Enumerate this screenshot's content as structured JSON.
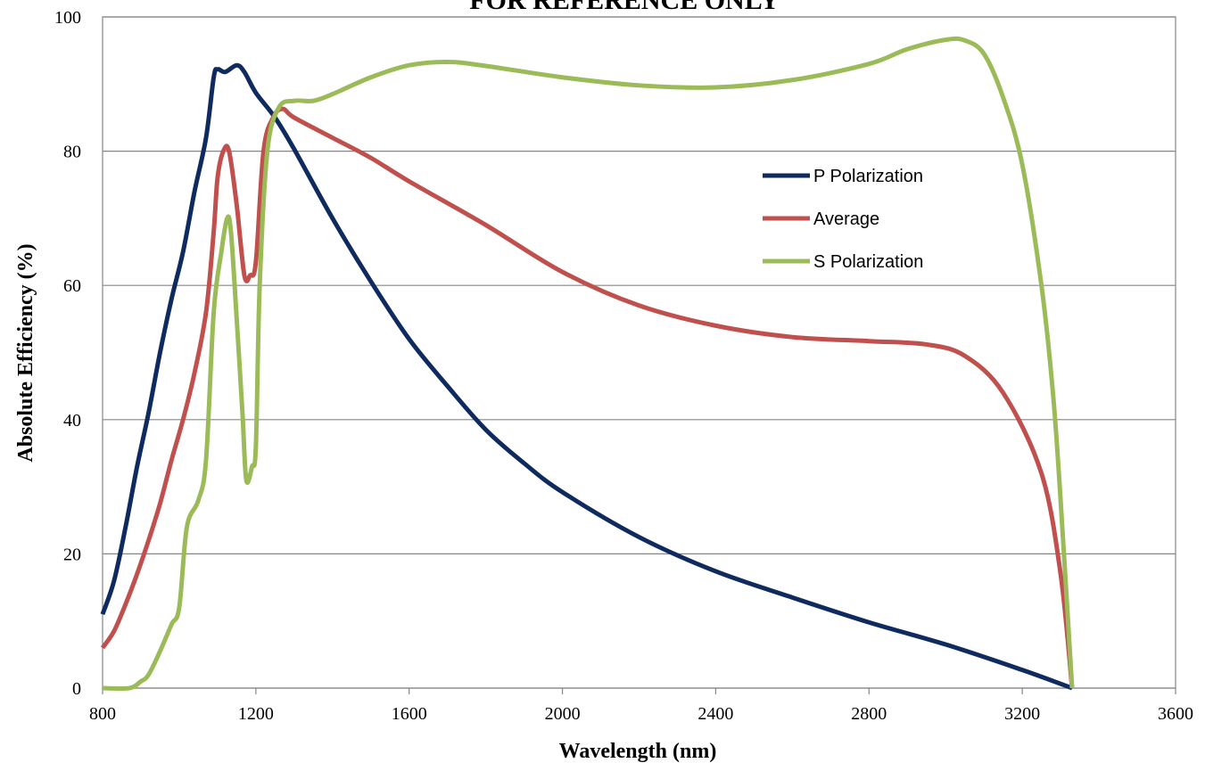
{
  "chart_data": {
    "type": "line",
    "title": "FOR REFERENCE ONLY",
    "xlabel": "Wavelength (nm)",
    "ylabel": "Absolute Efficiency (%)",
    "xlim": [
      800,
      3600
    ],
    "ylim": [
      0,
      100
    ],
    "x_ticks": [
      800,
      1200,
      1600,
      2000,
      2400,
      2800,
      3200,
      3600
    ],
    "y_ticks": [
      0,
      20,
      40,
      60,
      80,
      100
    ],
    "grid": "horizontal",
    "legend_position": "upper-right-inside",
    "series": [
      {
        "name": "P Polarization",
        "color": "#0f2a5f",
        "points": [
          [
            800,
            11
          ],
          [
            830,
            16
          ],
          [
            860,
            24
          ],
          [
            890,
            33
          ],
          [
            920,
            41
          ],
          [
            950,
            50
          ],
          [
            980,
            58
          ],
          [
            1010,
            65
          ],
          [
            1040,
            74
          ],
          [
            1070,
            82
          ],
          [
            1090,
            91
          ],
          [
            1100,
            92.2
          ],
          [
            1120,
            91.8
          ],
          [
            1150,
            92.8
          ],
          [
            1170,
            91.8
          ],
          [
            1200,
            88.7
          ],
          [
            1250,
            85
          ],
          [
            1300,
            80.3
          ],
          [
            1400,
            70
          ],
          [
            1500,
            60.6
          ],
          [
            1600,
            52
          ],
          [
            1700,
            45
          ],
          [
            1800,
            38.5
          ],
          [
            1900,
            33.5
          ],
          [
            2000,
            29.2
          ],
          [
            2200,
            22.5
          ],
          [
            2400,
            17.4
          ],
          [
            2600,
            13.5
          ],
          [
            2800,
            9.8
          ],
          [
            3000,
            6.5
          ],
          [
            3200,
            2.7
          ],
          [
            3330,
            0
          ]
        ]
      },
      {
        "name": "Average",
        "color": "#c0504d",
        "points": [
          [
            800,
            6
          ],
          [
            830,
            8.5
          ],
          [
            860,
            12.5
          ],
          [
            890,
            17
          ],
          [
            920,
            22
          ],
          [
            950,
            27.5
          ],
          [
            980,
            34
          ],
          [
            1010,
            40
          ],
          [
            1040,
            47
          ],
          [
            1070,
            56
          ],
          [
            1090,
            68
          ],
          [
            1100,
            76
          ],
          [
            1115,
            80
          ],
          [
            1130,
            80
          ],
          [
            1150,
            72
          ],
          [
            1170,
            61.5
          ],
          [
            1185,
            61.5
          ],
          [
            1200,
            63.5
          ],
          [
            1220,
            80
          ],
          [
            1245,
            85
          ],
          [
            1270,
            86.3
          ],
          [
            1300,
            85
          ],
          [
            1400,
            82
          ],
          [
            1500,
            79
          ],
          [
            1600,
            75.5
          ],
          [
            1800,
            69
          ],
          [
            2000,
            62
          ],
          [
            2200,
            57
          ],
          [
            2400,
            54
          ],
          [
            2600,
            52.3
          ],
          [
            2800,
            51.7
          ],
          [
            2950,
            51.2
          ],
          [
            3050,
            49.5
          ],
          [
            3150,
            44
          ],
          [
            3250,
            32
          ],
          [
            3300,
            17
          ],
          [
            3330,
            0
          ]
        ]
      },
      {
        "name": "S Polarization",
        "color": "#9bbb59",
        "points": [
          [
            800,
            0
          ],
          [
            870,
            0
          ],
          [
            900,
            1
          ],
          [
            920,
            2
          ],
          [
            950,
            5.5
          ],
          [
            980,
            9.5
          ],
          [
            1000,
            12
          ],
          [
            1020,
            24
          ],
          [
            1050,
            28
          ],
          [
            1070,
            34
          ],
          [
            1090,
            56
          ],
          [
            1110,
            65
          ],
          [
            1125,
            70
          ],
          [
            1135,
            68
          ],
          [
            1150,
            55
          ],
          [
            1165,
            41
          ],
          [
            1175,
            31
          ],
          [
            1190,
            33
          ],
          [
            1200,
            36
          ],
          [
            1210,
            60
          ],
          [
            1230,
            80
          ],
          [
            1260,
            86.5
          ],
          [
            1300,
            87.5
          ],
          [
            1350,
            87.5
          ],
          [
            1400,
            88.5
          ],
          [
            1500,
            91
          ],
          [
            1600,
            92.8
          ],
          [
            1700,
            93.3
          ],
          [
            1800,
            92.7
          ],
          [
            2000,
            91
          ],
          [
            2200,
            89.8
          ],
          [
            2400,
            89.5
          ],
          [
            2600,
            90.6
          ],
          [
            2800,
            93
          ],
          [
            2900,
            95.2
          ],
          [
            3000,
            96.6
          ],
          [
            3050,
            96.5
          ],
          [
            3100,
            94.5
          ],
          [
            3150,
            88
          ],
          [
            3200,
            78
          ],
          [
            3250,
            60
          ],
          [
            3280,
            44
          ],
          [
            3300,
            28
          ],
          [
            3330,
            0
          ]
        ]
      }
    ]
  }
}
